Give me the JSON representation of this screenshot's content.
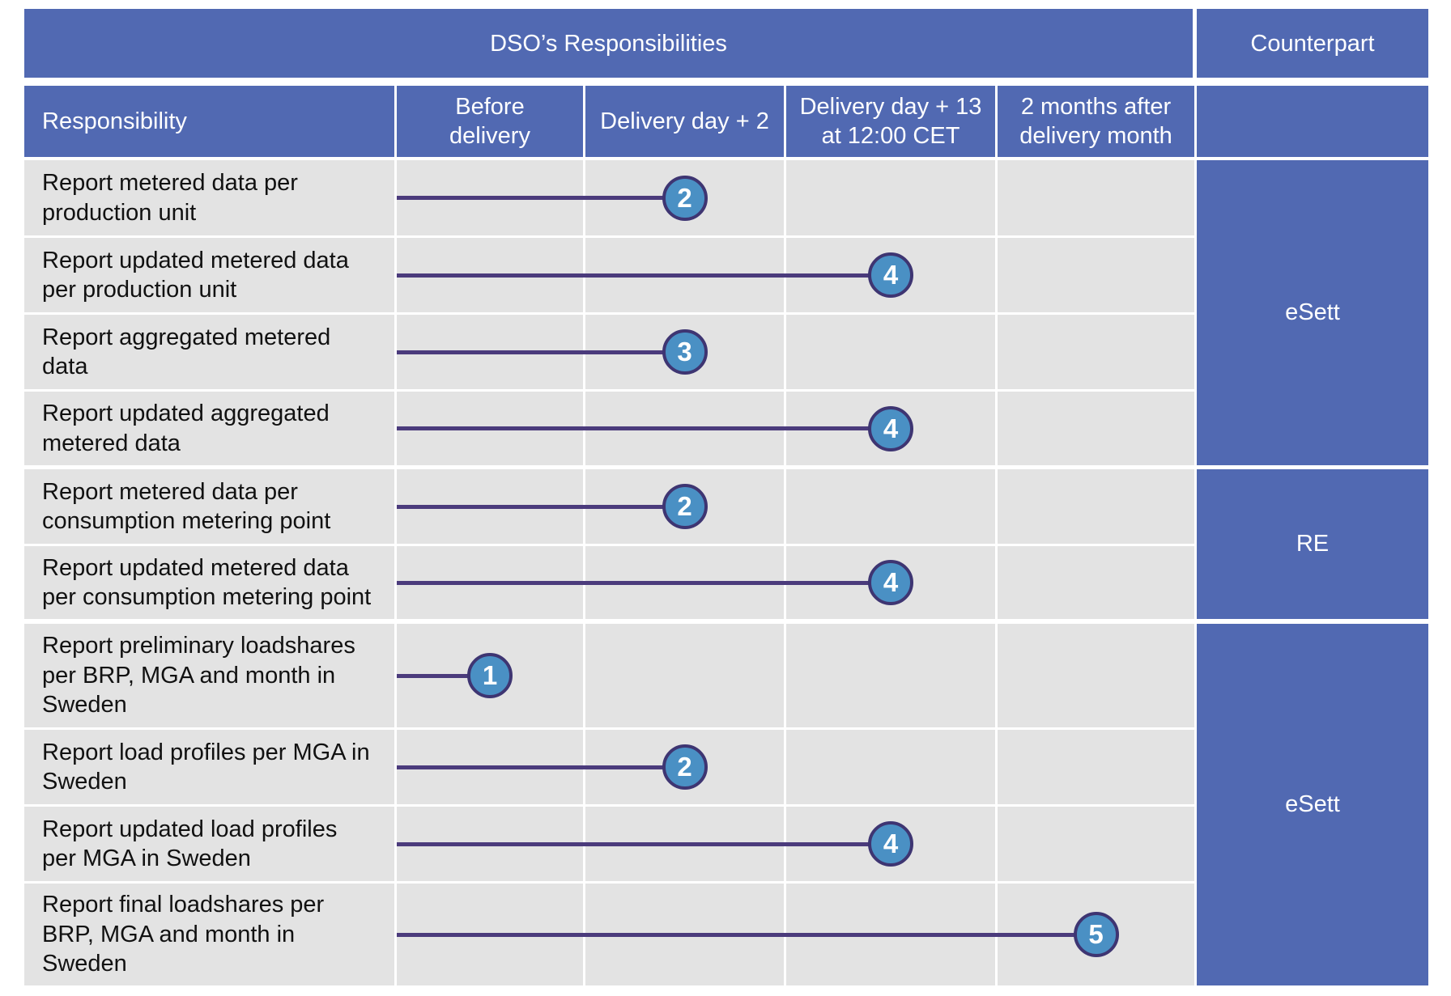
{
  "header": {
    "dso_title": "DSO’s Responsibilities",
    "counterpart_title": "Counterpart"
  },
  "columns": [
    "Responsibility",
    "Before\ndelivery",
    "Delivery day + 2",
    "Delivery day + 13\nat 12:00 CET",
    "2 months after\ndelivery month"
  ],
  "rows": [
    {
      "responsibility": "Report metered data per\nproduction unit",
      "step": "2",
      "column": "Delivery day + 2"
    },
    {
      "responsibility": "Report updated metered data\nper production unit",
      "step": "4",
      "column": "Delivery day + 13\nat 12:00 CET"
    },
    {
      "responsibility": "Report aggregated metered\ndata",
      "step": "3",
      "column": "Delivery day + 2"
    },
    {
      "responsibility": "Report updated aggregated\nmetered data",
      "step": "4",
      "column": "Delivery day + 13\nat 12:00 CET"
    },
    {
      "responsibility": "Report metered data per\nconsumption metering point",
      "step": "2",
      "column": "Delivery day + 2"
    },
    {
      "responsibility": "Report updated metered data\nper consumption metering point",
      "step": "4",
      "column": "Delivery day + 13\nat 12:00 CET"
    },
    {
      "responsibility": "Report preliminary loadshares\nper BRP, MGA and month in\nSweden",
      "step": "1",
      "column": "Before\ndelivery"
    },
    {
      "responsibility": "Report load profiles per MGA in\nSweden",
      "step": "2",
      "column": "Delivery day + 2"
    },
    {
      "responsibility": "Report updated load profiles\nper MGA in Sweden",
      "step": "4",
      "column": "Delivery day + 13\nat 12:00 CET"
    },
    {
      "responsibility": "Report final loadshares per\nBRP, MGA and month in\nSweden",
      "step": "5",
      "column": "2 months after\ndelivery month"
    }
  ],
  "counterparts": [
    {
      "label": "eSett"
    },
    {
      "label": "RE"
    },
    {
      "label": "eSett"
    }
  ],
  "colors": {
    "header_bg": "#5169B2",
    "cell_bg": "#E3E3E3",
    "line": "#4B3B7C",
    "badge_fill": "#4A90C4",
    "badge_border": "#3E3572"
  }
}
